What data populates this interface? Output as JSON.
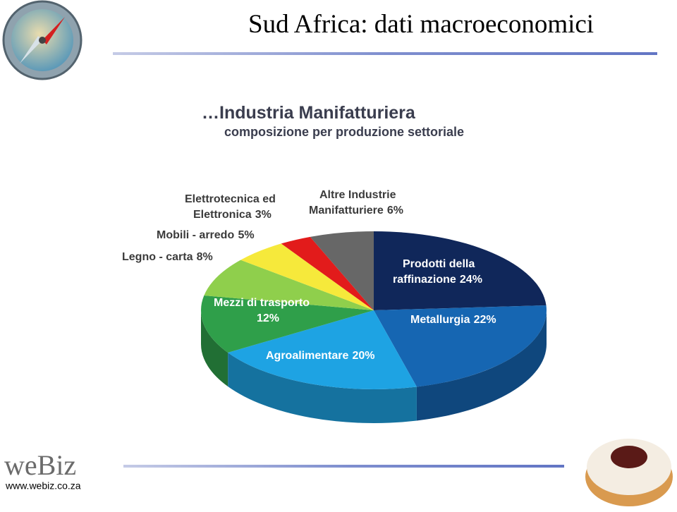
{
  "header": {
    "title": "Sud Africa: dati macroeconomici"
  },
  "chart_data": {
    "type": "pie",
    "title": "…Industria Manifatturiera",
    "subtitle": "composizione per produzione settoriale",
    "categories": [
      "Prodotti della raffinazione",
      "Metallurgia",
      "Agroalimentare",
      "Mezzi di trasporto",
      "Legno - carta",
      "Mobili - arredo",
      "Elettrotecnica ed Elettronica",
      "Altre Industrie Manifatturiere"
    ],
    "values": [
      24,
      22,
      20,
      12,
      8,
      5,
      3,
      6
    ],
    "value_labels": [
      "24%",
      "22%",
      "20%",
      "12%",
      "8%",
      "5%",
      "3%",
      "6%"
    ],
    "colors": [
      "#10275a",
      "#1666b2",
      "#1ea3e3",
      "#2f9f4a",
      "#8fcf4c",
      "#f6e93b",
      "#e21b1b",
      "#676767"
    ]
  },
  "footer": {
    "brand": "weBiz",
    "url": "www.webiz.co.za"
  }
}
